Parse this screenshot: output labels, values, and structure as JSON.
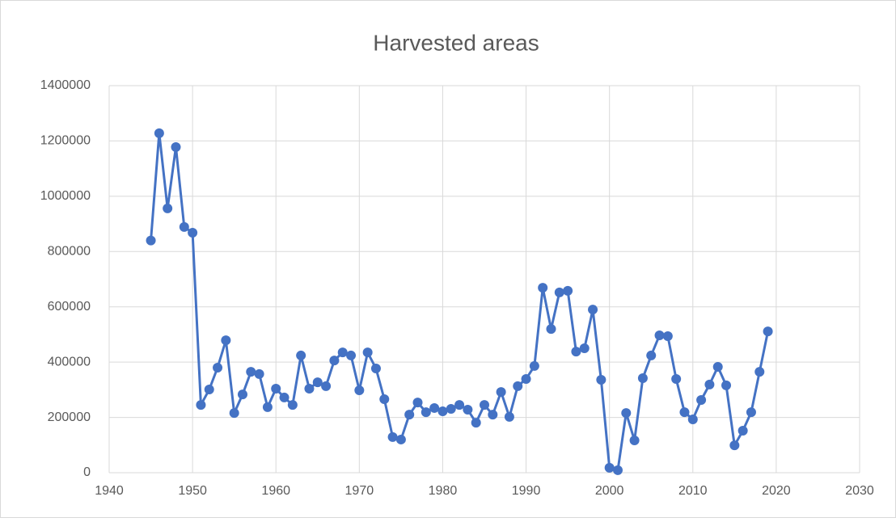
{
  "chart_data": {
    "type": "line",
    "title": "Harvested areas",
    "x": [
      1945,
      1946,
      1947,
      1948,
      1949,
      1950,
      1951,
      1952,
      1953,
      1954,
      1955,
      1956,
      1957,
      1958,
      1959,
      1960,
      1961,
      1962,
      1963,
      1964,
      1965,
      1966,
      1967,
      1968,
      1969,
      1970,
      1971,
      1972,
      1973,
      1974,
      1975,
      1976,
      1977,
      1978,
      1979,
      1980,
      1981,
      1982,
      1983,
      1984,
      1985,
      1986,
      1987,
      1988,
      1989,
      1990,
      1991,
      1992,
      1993,
      1994,
      1995,
      1996,
      1997,
      1998,
      1999,
      2000,
      2001,
      2002,
      2003,
      2004,
      2005,
      2006,
      2007,
      2008,
      2009,
      2010,
      2011,
      2012,
      2013,
      2014,
      2015,
      2016,
      2017,
      2018,
      2019
    ],
    "values": [
      840000,
      1228000,
      956000,
      1178000,
      889000,
      868000,
      245000,
      301000,
      380000,
      479000,
      216000,
      283000,
      365000,
      357000,
      237000,
      304000,
      272000,
      245000,
      424000,
      304000,
      327000,
      313000,
      406000,
      435000,
      424000,
      298000,
      435000,
      377000,
      266000,
      129000,
      120000,
      210000,
      254000,
      219000,
      234000,
      222000,
      231000,
      245000,
      228000,
      181000,
      245000,
      210000,
      292000,
      202000,
      313000,
      339000,
      386000,
      669000,
      520000,
      652000,
      658000,
      438000,
      450000,
      590000,
      336000,
      18000,
      9000,
      216000,
      117000,
      342000,
      424000,
      497000,
      494000,
      339000,
      219000,
      193000,
      263000,
      319000,
      383000,
      316000,
      99000,
      152000,
      219000,
      365000,
      511000
    ],
    "color": "#4472c4",
    "xlim": [
      1940,
      2030
    ],
    "xticks": [
      1940,
      1950,
      1960,
      1970,
      1980,
      1990,
      2000,
      2010,
      2020,
      2030
    ],
    "ylim": [
      0,
      1400000
    ],
    "yticks": [
      0,
      200000,
      400000,
      600000,
      800000,
      1000000,
      1200000,
      1400000
    ],
    "grid": true
  }
}
